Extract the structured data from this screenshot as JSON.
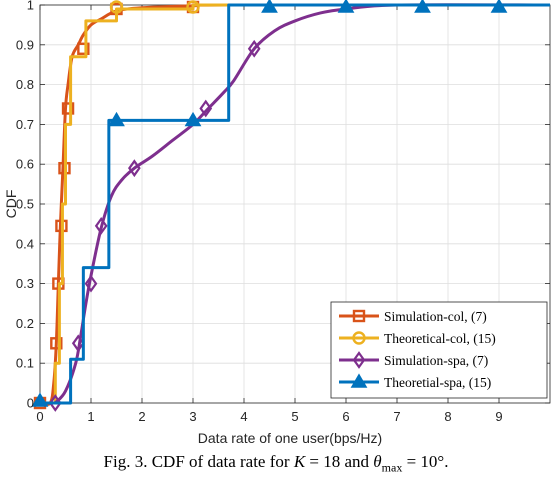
{
  "chart_data": {
    "type": "line",
    "xlabel": "Data rate of one user(bps/Hz)",
    "ylabel": "CDF",
    "xlim": [
      0,
      10
    ],
    "ylim": [
      0,
      1
    ],
    "xticks": [
      0,
      1,
      2,
      3,
      4,
      5,
      6,
      7,
      8,
      9
    ],
    "yticks": [
      0,
      0.1,
      0.2,
      0.3,
      0.4,
      0.5,
      0.6,
      0.7,
      0.8,
      0.9,
      1
    ],
    "grid": true,
    "legend_position": "bottom-right",
    "series": [
      {
        "name": "Simulation-col, (7)",
        "color": "#D95319",
        "marker": "square",
        "style": "smooth",
        "points": [
          [
            0,
            0
          ],
          [
            0.2,
            0
          ],
          [
            0.27,
            0.05
          ],
          [
            0.32,
            0.15
          ],
          [
            0.36,
            0.3
          ],
          [
            0.4,
            0.445
          ],
          [
            0.45,
            0.59
          ],
          [
            0.5,
            0.74
          ],
          [
            0.55,
            0.8
          ],
          [
            0.63,
            0.87
          ],
          [
            0.75,
            0.9
          ],
          [
            0.85,
            0.925
          ],
          [
            1.0,
            0.95
          ],
          [
            1.2,
            0.965
          ],
          [
            1.5,
            0.985
          ],
          [
            2.0,
            0.993
          ],
          [
            3.0,
            0.998
          ],
          [
            3.7,
            1.0
          ],
          [
            10,
            1.0
          ]
        ],
        "markers": [
          [
            0,
            0
          ],
          [
            0.32,
            0.15
          ],
          [
            0.36,
            0.3
          ],
          [
            0.42,
            0.445
          ],
          [
            0.48,
            0.59
          ],
          [
            0.55,
            0.74
          ],
          [
            0.85,
            0.89
          ],
          [
            1.5,
            0.99
          ],
          [
            3.0,
            0.995
          ]
        ]
      },
      {
        "name": "Theoretical-col, (15)",
        "color": "#EDB120",
        "marker": "circle",
        "style": "step",
        "points": [
          [
            0,
            0
          ],
          [
            0.3,
            0
          ],
          [
            0.3,
            0.1
          ],
          [
            0.38,
            0.1
          ],
          [
            0.38,
            0.3
          ],
          [
            0.44,
            0.3
          ],
          [
            0.44,
            0.5
          ],
          [
            0.5,
            0.5
          ],
          [
            0.5,
            0.7
          ],
          [
            0.6,
            0.7
          ],
          [
            0.6,
            0.87
          ],
          [
            0.9,
            0.87
          ],
          [
            0.9,
            0.96
          ],
          [
            1.5,
            0.96
          ],
          [
            1.5,
            0.99
          ],
          [
            3.0,
            0.99
          ],
          [
            3.0,
            1.0
          ],
          [
            10,
            1.0
          ]
        ],
        "markers": [
          [
            1.5,
            0.995
          ],
          [
            3.0,
            0.995
          ]
        ]
      },
      {
        "name": "Simulation-spa, (7)",
        "color": "#7E2F8E",
        "marker": "diamond",
        "style": "smooth",
        "points": [
          [
            0,
            0
          ],
          [
            0.25,
            0
          ],
          [
            0.32,
            0.003
          ],
          [
            0.5,
            0.03
          ],
          [
            0.7,
            0.1
          ],
          [
            0.8,
            0.17
          ],
          [
            0.9,
            0.25
          ],
          [
            1.0,
            0.32
          ],
          [
            1.2,
            0.44
          ],
          [
            1.4,
            0.52
          ],
          [
            1.6,
            0.56
          ],
          [
            1.85,
            0.59
          ],
          [
            2.2,
            0.62
          ],
          [
            2.6,
            0.66
          ],
          [
            3.0,
            0.7
          ],
          [
            3.3,
            0.74
          ],
          [
            3.6,
            0.78
          ],
          [
            3.8,
            0.81
          ],
          [
            4.2,
            0.89
          ],
          [
            4.6,
            0.935
          ],
          [
            5.0,
            0.96
          ],
          [
            5.5,
            0.98
          ],
          [
            6.0,
            0.99
          ],
          [
            7.0,
            1.0
          ],
          [
            10,
            1.0
          ]
        ],
        "markers": [
          [
            0.3,
            0
          ],
          [
            0.75,
            0.15
          ],
          [
            1.0,
            0.3
          ],
          [
            1.2,
            0.445
          ],
          [
            1.85,
            0.59
          ],
          [
            3.25,
            0.74
          ],
          [
            4.2,
            0.89
          ]
        ]
      },
      {
        "name": "Theoretial-spa, (15)",
        "color": "#0072BD",
        "marker": "triangle",
        "style": "step",
        "points": [
          [
            0,
            0
          ],
          [
            0.6,
            0
          ],
          [
            0.6,
            0.11
          ],
          [
            0.85,
            0.11
          ],
          [
            0.85,
            0.34
          ],
          [
            1.35,
            0.34
          ],
          [
            1.35,
            0.71
          ],
          [
            3.7,
            0.71
          ],
          [
            3.7,
            1.0
          ],
          [
            10,
            1.0
          ]
        ],
        "markers": [
          [
            0,
            0.005
          ],
          [
            1.5,
            0.71
          ],
          [
            3.0,
            0.71
          ],
          [
            4.5,
            0.995
          ],
          [
            6.0,
            0.995
          ],
          [
            7.5,
            0.995
          ],
          [
            9.0,
            0.995
          ]
        ]
      }
    ]
  },
  "caption": "Fig. 3.  CDF of data rate for K = 18 and θmax = 10°.",
  "caption_parts": {
    "prefix": "Fig. 3.  CDF of data rate for ",
    "k_var": "K",
    "k_eq": " = 18 and ",
    "theta": "θ",
    "theta_sub": "max",
    "theta_eq": " = 10°."
  }
}
